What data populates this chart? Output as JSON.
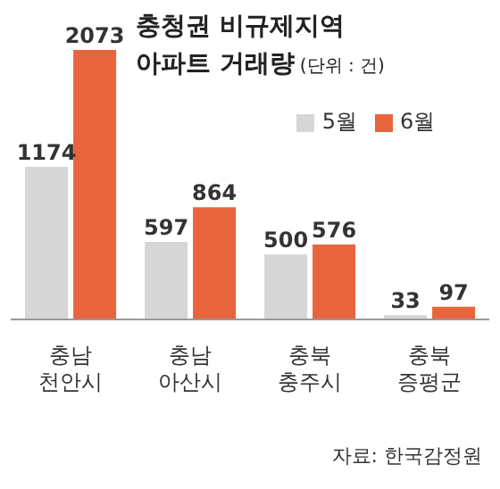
{
  "chart_data": {
    "type": "bar",
    "title": "충청권 비규제지역\n아파트 거래량",
    "subtitle": "(단위 : 건)",
    "categories": [
      "충남\n천안시",
      "충남\n아산시",
      "충북\n충주시",
      "충북\n증평군"
    ],
    "series": [
      {
        "name": "5월",
        "color": "#d6d6d6",
        "values": [
          1174,
          597,
          500,
          33
        ]
      },
      {
        "name": "6월",
        "color": "#e8643c",
        "values": [
          2073,
          864,
          576,
          97
        ]
      }
    ],
    "data_labels": true,
    "legend": "top right",
    "annotations": [
      "자료: 한국감정원"
    ]
  }
}
